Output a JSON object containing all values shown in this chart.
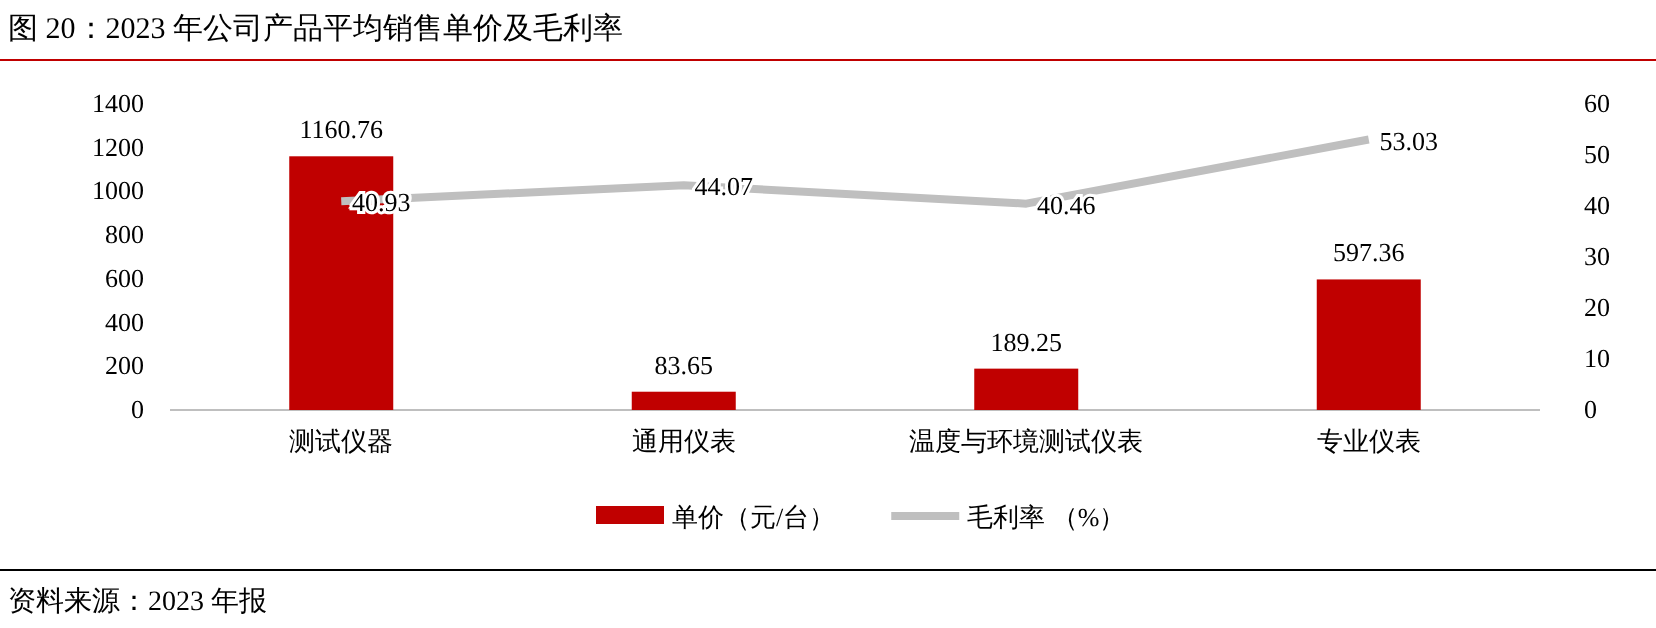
{
  "chart_data": {
    "type": "bar",
    "title": "图 20：2023 年公司产品平均销售单价及毛利率",
    "categories": [
      "测试仪器",
      "通用仪表",
      "温度与环境测试仪表",
      "专业仪表"
    ],
    "series": [
      {
        "name": "单价（元/台）",
        "color": "#c00000",
        "values": [
          1160.76,
          83.65,
          189.25,
          597.36
        ]
      },
      {
        "name": "毛利率 （%）",
        "type": "line",
        "axis": "y2",
        "color": "#bfbfbf",
        "values": [
          40.93,
          44.07,
          40.46,
          53.03
        ]
      }
    ],
    "ylim": [
      0,
      1400
    ],
    "yticks": [
      0,
      200,
      400,
      600,
      800,
      1000,
      1200,
      1400
    ],
    "y2lim": [
      0,
      60
    ],
    "y2ticks": [
      0,
      10,
      20,
      30,
      40,
      50,
      60
    ],
    "data_labels": true,
    "grid": false,
    "legend": "bottom",
    "marker": "none",
    "annotations": [
      "资料来源：2023 年报"
    ]
  }
}
